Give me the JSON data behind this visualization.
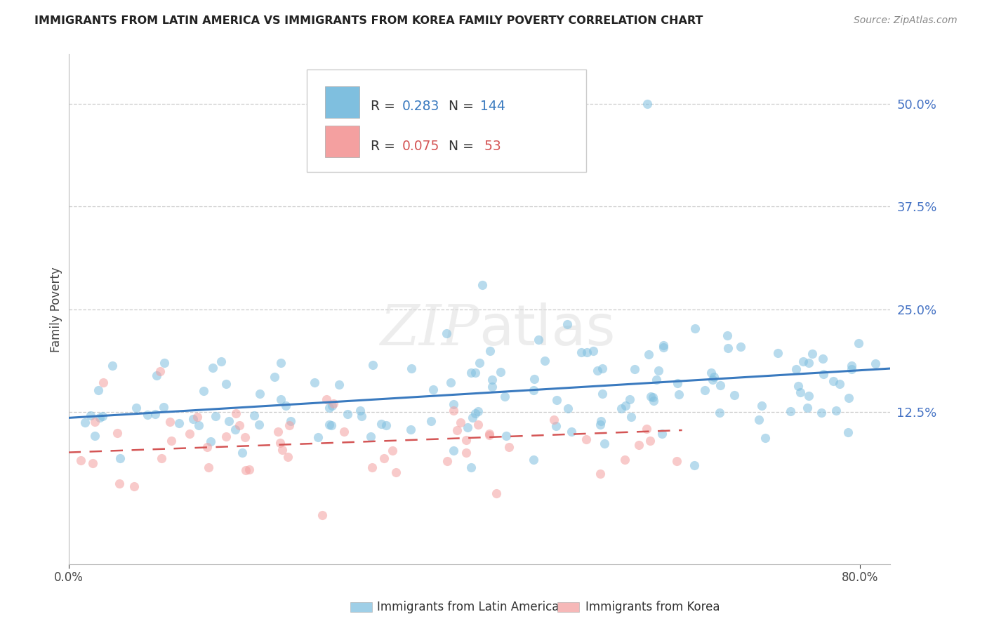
{
  "title": "IMMIGRANTS FROM LATIN AMERICA VS IMMIGRANTS FROM KOREA FAMILY POVERTY CORRELATION CHART",
  "source": "Source: ZipAtlas.com",
  "ylabel": "Family Poverty",
  "ytick_labels": [
    "12.5%",
    "25.0%",
    "37.5%",
    "50.0%"
  ],
  "ytick_values": [
    0.125,
    0.25,
    0.375,
    0.5
  ],
  "xmin": 0.0,
  "xmax": 0.83,
  "ymin": -0.06,
  "ymax": 0.56,
  "legend_label1": "Immigrants from Latin America",
  "legend_label2": "Immigrants from Korea",
  "blue_color": "#7fbfdf",
  "pink_color": "#f4a0a0",
  "blue_line_color": "#3a7abf",
  "pink_line_color": "#d45555",
  "title_color": "#222222",
  "right_tick_color": "#4472c4",
  "grid_color": "#cccccc",
  "scatter_alpha": 0.55,
  "scatter_size": 90,
  "blue_line_y_start": 0.118,
  "blue_line_y_end": 0.178,
  "pink_line_y_start": 0.076,
  "pink_line_y_end": 0.103,
  "background_color": "#ffffff"
}
